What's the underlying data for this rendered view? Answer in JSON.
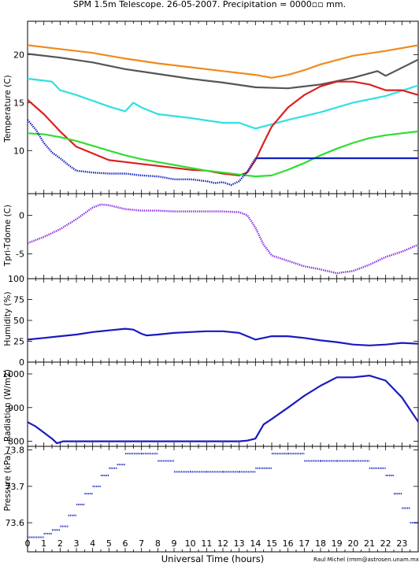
{
  "title": "SPM 1.5m Telescope. 26-05-2007. Precipitation = 0000▫▫ mm.",
  "xlabel": "Universal Time (hours)",
  "credit": "Raul Michel (rmm@astrosen.unam.mx)",
  "x_ticks": [
    "0",
    "1",
    "2",
    "3",
    "4",
    "5",
    "6",
    "7",
    "8",
    "9",
    "10",
    "11",
    "12",
    "13",
    "14",
    "15",
    "16",
    "17",
    "18",
    "19",
    "20",
    "21",
    "22",
    "23"
  ],
  "colors": {
    "orange": "#f08a1c",
    "gray": "#555555",
    "cyan": "#30e0e0",
    "red": "#dd2020",
    "green": "#30dd30",
    "blue": "#1020c0",
    "purple": "#8a2be2",
    "navy": "#1a1ac0"
  },
  "chart_data": [
    {
      "id": "temperature",
      "type": "line",
      "ylabel": "Temperature (C)",
      "ylim": [
        5.5,
        23.5
      ],
      "yticks": [
        "10",
        "15",
        "20"
      ],
      "xlim": [
        0,
        24
      ],
      "series": [
        {
          "color": "orange",
          "style": "line",
          "x": [
            0,
            2,
            4,
            6,
            8,
            10,
            12,
            14,
            15,
            16,
            17,
            18,
            20,
            22,
            24
          ],
          "y": [
            21.0,
            20.6,
            20.2,
            19.6,
            19.1,
            18.7,
            18.3,
            17.9,
            17.6,
            17.9,
            18.4,
            19.0,
            19.9,
            20.4,
            21.0
          ]
        },
        {
          "color": "gray",
          "style": "line",
          "x": [
            0,
            2,
            4,
            6,
            8,
            10,
            12,
            14,
            16,
            18,
            20,
            21.5,
            22,
            24
          ],
          "y": [
            20.1,
            19.7,
            19.2,
            18.5,
            18.0,
            17.5,
            17.1,
            16.6,
            16.5,
            16.9,
            17.6,
            18.3,
            17.8,
            19.5
          ]
        },
        {
          "color": "cyan",
          "style": "line",
          "x": [
            0,
            1,
            1.5,
            2,
            3,
            4,
            5,
            6,
            6.5,
            7,
            8,
            10,
            12,
            13,
            14,
            16,
            18,
            20,
            22,
            24
          ],
          "y": [
            17.5,
            17.3,
            17.2,
            16.3,
            15.8,
            15.2,
            14.6,
            14.1,
            15.0,
            14.5,
            13.8,
            13.4,
            12.9,
            12.9,
            12.3,
            13.2,
            14.0,
            15.0,
            15.7,
            16.8
          ]
        },
        {
          "color": "red",
          "style": "line",
          "x": [
            0,
            1,
            2,
            3,
            4,
            5,
            6,
            7,
            8,
            9,
            10,
            11,
            12,
            13,
            13.5,
            14,
            14.5,
            15,
            16,
            17,
            18,
            19,
            20,
            21,
            22,
            23,
            24
          ],
          "y": [
            15.3,
            13.8,
            12.0,
            10.4,
            9.7,
            9.0,
            8.8,
            8.6,
            8.4,
            8.2,
            8.0,
            7.9,
            7.6,
            7.4,
            7.7,
            9.0,
            10.8,
            12.5,
            14.5,
            15.8,
            16.7,
            17.2,
            17.2,
            16.9,
            16.3,
            16.3,
            15.8
          ]
        },
        {
          "color": "green",
          "style": "line",
          "x": [
            0,
            1,
            2,
            3,
            4,
            5,
            6,
            7,
            8,
            9,
            10,
            11,
            12,
            13,
            14,
            15,
            16,
            17,
            18,
            19,
            20,
            21,
            22,
            23,
            24
          ],
          "y": [
            11.8,
            11.7,
            11.4,
            11.0,
            10.5,
            10.0,
            9.5,
            9.1,
            8.8,
            8.5,
            8.2,
            7.9,
            7.7,
            7.5,
            7.3,
            7.4,
            8.0,
            8.7,
            9.5,
            10.2,
            10.8,
            11.3,
            11.6,
            11.8,
            12.0
          ]
        },
        {
          "color": "blue",
          "style": "dots",
          "x": [
            0,
            0.5,
            1,
            1.5,
            2,
            2.5,
            3,
            3.5,
            4,
            5,
            6,
            7,
            8,
            9,
            10,
            11,
            11.5,
            12,
            12.5,
            13,
            13.5,
            14
          ],
          "y": [
            13.2,
            12.2,
            10.8,
            9.8,
            9.2,
            8.5,
            7.9,
            7.8,
            7.7,
            7.6,
            7.6,
            7.4,
            7.3,
            7.0,
            7.0,
            6.8,
            6.6,
            6.7,
            6.4,
            6.8,
            7.8,
            9.2
          ]
        },
        {
          "color": "blue",
          "style": "line",
          "x": [
            14,
            24
          ],
          "y": [
            9.2,
            9.2
          ]
        }
      ]
    },
    {
      "id": "tpri_tdome",
      "type": "scatter",
      "ylabel": "Tpri-Tdome (C)",
      "ylim": [
        -8.2,
        2.8
      ],
      "yticks": [
        "-5",
        "0"
      ],
      "xlim": [
        0,
        24
      ],
      "series": [
        {
          "color": "purple",
          "style": "dots",
          "x": [
            0,
            1,
            2,
            3,
            4,
            4.5,
            5,
            6,
            7,
            8,
            9,
            10,
            11,
            12,
            13,
            13.5,
            14,
            14.5,
            15,
            16,
            17,
            18,
            19,
            20,
            21,
            22,
            23,
            24
          ],
          "y": [
            -3.6,
            -2.8,
            -1.8,
            -0.5,
            1.0,
            1.4,
            1.3,
            0.8,
            0.6,
            0.6,
            0.5,
            0.5,
            0.5,
            0.5,
            0.4,
            0.0,
            -1.6,
            -3.8,
            -5.2,
            -5.9,
            -6.6,
            -7.0,
            -7.5,
            -7.2,
            -6.4,
            -5.4,
            -4.7,
            -3.8
          ]
        }
      ]
    },
    {
      "id": "humidity",
      "type": "line",
      "ylabel": "Humidity (%)",
      "ylim": [
        0,
        100
      ],
      "yticks": [
        "0",
        "25",
        "50",
        "75",
        "100"
      ],
      "xlim": [
        0,
        24
      ],
      "series": [
        {
          "color": "navy",
          "style": "line",
          "x": [
            0,
            1,
            2,
            3,
            4,
            5,
            6,
            6.5,
            7,
            7.3,
            8,
            9,
            10,
            11,
            12,
            13,
            14,
            15,
            16,
            17,
            18,
            19,
            20,
            21,
            22,
            23,
            24
          ],
          "y": [
            27,
            29,
            31,
            33,
            36,
            38,
            40,
            39,
            34,
            32,
            33,
            35,
            36,
            37,
            37,
            35,
            27,
            31,
            31,
            29,
            26,
            24,
            21,
            20,
            21,
            23,
            22
          ]
        }
      ]
    },
    {
      "id": "radiation",
      "type": "line",
      "ylabel": "Radiation (W/m2)",
      "ylim": [
        785,
        1035
      ],
      "yticks": [
        "800",
        "900",
        "1000"
      ],
      "xlim": [
        0,
        24
      ],
      "series": [
        {
          "color": "navy",
          "style": "line",
          "x": [
            0,
            0.5,
            1,
            1.5,
            1.8,
            2.2,
            3,
            5,
            10,
            13,
            13.5,
            14,
            14.5,
            15,
            16,
            17,
            18,
            19,
            20,
            21,
            22,
            23,
            24
          ],
          "y": [
            857,
            844,
            826,
            808,
            794,
            800,
            800,
            800,
            800,
            800,
            802,
            808,
            850,
            866,
            900,
            935,
            965,
            990,
            990,
            995,
            980,
            930,
            858
          ]
        }
      ]
    },
    {
      "id": "pressure",
      "type": "scatter",
      "ylabel": "Pressure (kPa)",
      "ylim": [
        73.52,
        73.81
      ],
      "yticks": [
        "73.6",
        "73.7",
        "73.8"
      ],
      "xlim": [
        0,
        24
      ],
      "series": [
        {
          "color": "blue",
          "style": "steps",
          "x": [
            0,
            1,
            1.5,
            2,
            2.5,
            3,
            3.5,
            4,
            4.5,
            5,
            5.5,
            6,
            7,
            8,
            9,
            10,
            11,
            12,
            13,
            14,
            15,
            16,
            17,
            18,
            19,
            20,
            21,
            22,
            22.5,
            23,
            23.5,
            24
          ],
          "y": [
            73.56,
            73.57,
            73.58,
            73.59,
            73.62,
            73.65,
            73.68,
            73.7,
            73.73,
            73.75,
            73.76,
            73.79,
            73.79,
            73.77,
            73.74,
            73.74,
            73.74,
            73.74,
            73.74,
            73.75,
            73.79,
            73.79,
            73.77,
            73.77,
            73.77,
            73.77,
            73.75,
            73.73,
            73.68,
            73.64,
            73.6,
            73.58
          ]
        }
      ]
    }
  ]
}
